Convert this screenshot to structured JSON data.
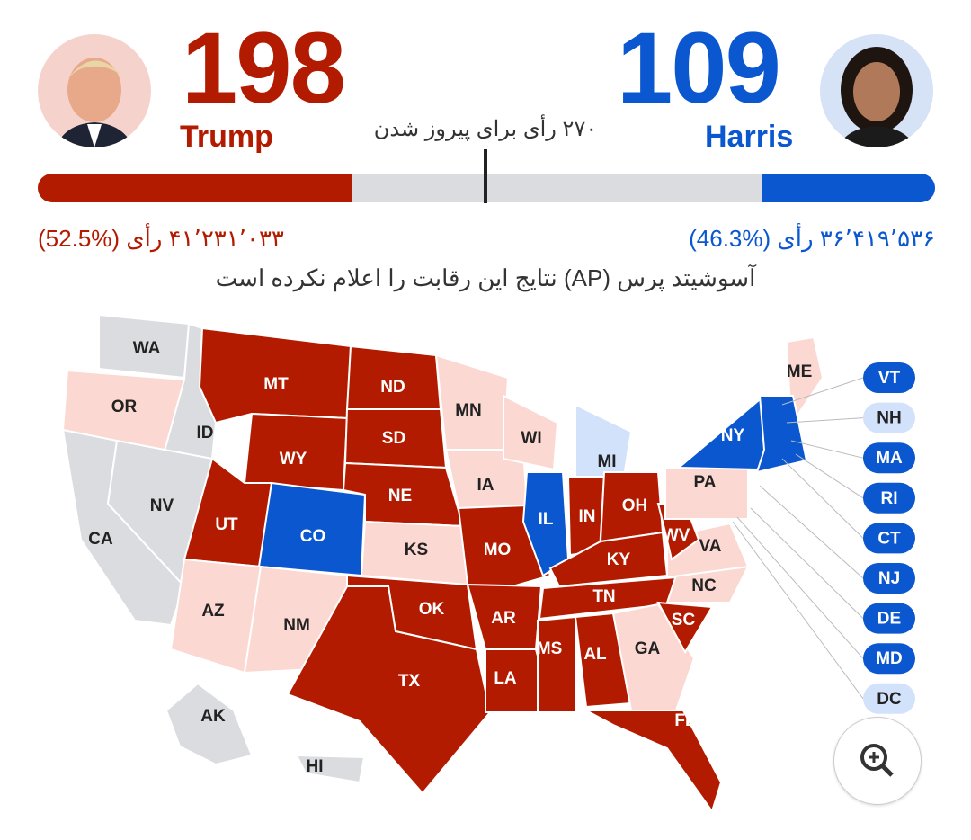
{
  "threshold_label": "۲۷۰ رأی برای پیروز شدن",
  "trump": {
    "name": "Trump",
    "electoral": "198",
    "popular": "۴۱٬۲۳۱٬۰۳۳ رأی (%52.5)",
    "color": "#b31b00",
    "bar_fraction": 0.3494
  },
  "harris": {
    "name": "Harris",
    "electoral": "109",
    "popular": "۳۶٬۴۱۹٬۵۳۶ رأی (%46.3)",
    "color": "#0b57d0",
    "bar_fraction": 0.1933
  },
  "notice": "آسوشیتد پرس (AP) نتایج این رقابت را اعلام نکرده است",
  "colors": {
    "r": "#b31b00",
    "lr": "#fbd8d2",
    "b": "#0b57d0",
    "lb": "#d3e2fb",
    "g": "#dadce0"
  },
  "states": [
    {
      "id": "WA",
      "c": "g"
    },
    {
      "id": "OR",
      "c": "lr"
    },
    {
      "id": "ID",
      "c": "g"
    },
    {
      "id": "CA",
      "c": "g"
    },
    {
      "id": "NV",
      "c": "g"
    },
    {
      "id": "MT",
      "c": "r"
    },
    {
      "id": "WY",
      "c": "r"
    },
    {
      "id": "UT",
      "c": "r"
    },
    {
      "id": "CO",
      "c": "b"
    },
    {
      "id": "AZ",
      "c": "lr"
    },
    {
      "id": "NM",
      "c": "lr"
    },
    {
      "id": "ND",
      "c": "r"
    },
    {
      "id": "SD",
      "c": "r"
    },
    {
      "id": "NE",
      "c": "r"
    },
    {
      "id": "KS",
      "c": "lr"
    },
    {
      "id": "OK",
      "c": "r"
    },
    {
      "id": "TX",
      "c": "r"
    },
    {
      "id": "MN",
      "c": "lr"
    },
    {
      "id": "IA",
      "c": "lr"
    },
    {
      "id": "MO",
      "c": "r"
    },
    {
      "id": "AR",
      "c": "r"
    },
    {
      "id": "LA",
      "c": "r"
    },
    {
      "id": "WI",
      "c": "lr"
    },
    {
      "id": "IL",
      "c": "b"
    },
    {
      "id": "MI",
      "c": "lb"
    },
    {
      "id": "IN",
      "c": "r"
    },
    {
      "id": "OH",
      "c": "r"
    },
    {
      "id": "KY",
      "c": "r"
    },
    {
      "id": "TN",
      "c": "r"
    },
    {
      "id": "MS",
      "c": "r"
    },
    {
      "id": "AL",
      "c": "r"
    },
    {
      "id": "GA",
      "c": "lr"
    },
    {
      "id": "FL",
      "c": "r"
    },
    {
      "id": "SC",
      "c": "r"
    },
    {
      "id": "NC",
      "c": "lr"
    },
    {
      "id": "VA",
      "c": "lr"
    },
    {
      "id": "WV",
      "c": "r"
    },
    {
      "id": "PA",
      "c": "lr"
    },
    {
      "id": "NY",
      "c": "b"
    },
    {
      "id": "ME",
      "c": "lr"
    },
    {
      "id": "NE-BLOB",
      "c": "b",
      "nolabel": true
    },
    {
      "id": "AK",
      "c": "g"
    },
    {
      "id": "HI",
      "c": "g"
    }
  ],
  "small_states": [
    {
      "id": "VT",
      "c": "b"
    },
    {
      "id": "NH",
      "c": "lb"
    },
    {
      "id": "MA",
      "c": "b"
    },
    {
      "id": "RI",
      "c": "b"
    },
    {
      "id": "CT",
      "c": "b"
    },
    {
      "id": "NJ",
      "c": "b"
    },
    {
      "id": "DE",
      "c": "b"
    },
    {
      "id": "MD",
      "c": "b"
    },
    {
      "id": "DC",
      "c": "lb"
    }
  ],
  "zoom_icon": "zoom-in-icon"
}
